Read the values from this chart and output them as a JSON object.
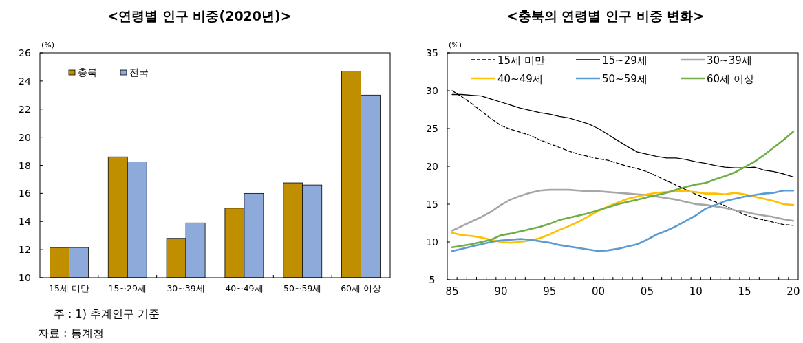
{
  "chart_data": [
    {
      "type": "bar",
      "title": "<연령별 인구 비중(2020년)>",
      "ylabel": "(%)",
      "categories": [
        "15세 미만",
        "15~29세",
        "30~39세",
        "40~49세",
        "50~59세",
        "60세 이상"
      ],
      "series": [
        {
          "name": "충북",
          "color": "#bf8f00",
          "values": [
            12.15,
            18.6,
            12.8,
            14.95,
            16.75,
            24.7
          ]
        },
        {
          "name": "전국",
          "color": "#8eaadb",
          "values": [
            12.15,
            18.25,
            13.9,
            16.0,
            16.6,
            23.0
          ]
        }
      ],
      "ylim": [
        10,
        26
      ],
      "yticks": [
        10,
        12,
        14,
        16,
        18,
        20,
        22,
        24,
        26
      ],
      "legend": "top left",
      "grid": false,
      "annotations": [
        "주 : 1) 추계인구 기준",
        "자료 : 통계청"
      ]
    },
    {
      "type": "line",
      "title": "<충북의 연령별 인구 비중 변화>",
      "ylabel": "(%)",
      "x": [
        1985,
        1986,
        1987,
        1988,
        1989,
        1990,
        1991,
        1992,
        1993,
        1994,
        1995,
        1996,
        1997,
        1998,
        1999,
        2000,
        2001,
        2002,
        2003,
        2004,
        2005,
        2006,
        2007,
        2008,
        2009,
        2010,
        2011,
        2012,
        2013,
        2014,
        2015,
        2016,
        2017,
        2018,
        2019,
        2020
      ],
      "series": [
        {
          "name": "15세 미만",
          "color": "#000000",
          "line_style": "dashed",
          "values": [
            30.0,
            29.2,
            28.3,
            27.3,
            26.3,
            25.4,
            24.9,
            24.5,
            24.1,
            23.5,
            23.0,
            22.5,
            22.0,
            21.6,
            21.3,
            21.0,
            20.8,
            20.4,
            20.0,
            19.7,
            19.3,
            18.7,
            18.1,
            17.5,
            16.9,
            16.3,
            15.8,
            15.3,
            14.8,
            14.2,
            13.6,
            13.2,
            12.9,
            12.6,
            12.3,
            12.2
          ]
        },
        {
          "name": "15~29세",
          "color": "#000000",
          "values": [
            29.5,
            29.5,
            29.4,
            29.3,
            28.9,
            28.5,
            28.1,
            27.7,
            27.4,
            27.1,
            26.9,
            26.6,
            26.4,
            26.0,
            25.6,
            25.0,
            24.2,
            23.4,
            22.6,
            21.9,
            21.6,
            21.3,
            21.1,
            21.1,
            20.9,
            20.6,
            20.4,
            20.1,
            19.9,
            19.8,
            19.8,
            19.9,
            19.5,
            19.3,
            19.0,
            18.6
          ]
        },
        {
          "name": "30~39세",
          "color": "#a6a6a6",
          "values": [
            11.5,
            12.1,
            12.7,
            13.3,
            14.0,
            14.9,
            15.6,
            16.1,
            16.5,
            16.8,
            16.9,
            16.9,
            16.9,
            16.8,
            16.7,
            16.7,
            16.6,
            16.5,
            16.4,
            16.3,
            16.2,
            16.0,
            15.8,
            15.6,
            15.3,
            15.0,
            14.9,
            14.7,
            14.5,
            14.2,
            14.0,
            13.7,
            13.5,
            13.3,
            13.0,
            12.8
          ]
        },
        {
          "name": "40~49세",
          "color": "#ffc000",
          "values": [
            11.2,
            10.9,
            10.8,
            10.6,
            10.3,
            10.0,
            9.9,
            10.0,
            10.2,
            10.5,
            11.0,
            11.6,
            12.1,
            12.7,
            13.4,
            14.1,
            14.7,
            15.2,
            15.7,
            16.0,
            16.3,
            16.5,
            16.6,
            16.7,
            16.7,
            16.6,
            16.4,
            16.4,
            16.3,
            16.5,
            16.3,
            16.0,
            15.7,
            15.4,
            15.0,
            14.9
          ]
        },
        {
          "name": "50~59세",
          "color": "#5b9bd5",
          "values": [
            8.8,
            9.1,
            9.4,
            9.7,
            10.0,
            10.2,
            10.3,
            10.4,
            10.3,
            10.1,
            9.9,
            9.6,
            9.4,
            9.2,
            9.0,
            8.8,
            8.9,
            9.1,
            9.4,
            9.7,
            10.3,
            11.0,
            11.5,
            12.1,
            12.8,
            13.5,
            14.4,
            14.9,
            15.4,
            15.7,
            16.0,
            16.2,
            16.4,
            16.5,
            16.8,
            16.8
          ]
        },
        {
          "name": "60세 이상",
          "color": "#70ad47",
          "values": [
            9.3,
            9.5,
            9.7,
            10.0,
            10.3,
            10.9,
            11.1,
            11.4,
            11.7,
            12.0,
            12.4,
            12.9,
            13.2,
            13.5,
            13.8,
            14.2,
            14.6,
            15.0,
            15.3,
            15.6,
            15.9,
            16.2,
            16.5,
            16.9,
            17.3,
            17.6,
            17.8,
            18.3,
            18.7,
            19.2,
            19.9,
            20.6,
            21.5,
            22.5,
            23.5,
            24.6
          ]
        }
      ],
      "xlim": [
        1984.5,
        2020.5
      ],
      "xticks": [
        {
          "value": 1985,
          "label": "85"
        },
        {
          "value": 1990,
          "label": "90"
        },
        {
          "value": 1995,
          "label": "95"
        },
        {
          "value": 2000,
          "label": "00"
        },
        {
          "value": 2005,
          "label": "05"
        },
        {
          "value": 2010,
          "label": "10"
        },
        {
          "value": 2015,
          "label": "15"
        },
        {
          "value": 2020,
          "label": "20"
        }
      ],
      "ylim": [
        5,
        35
      ],
      "yticks": [
        5,
        10,
        15,
        20,
        25,
        30,
        35
      ],
      "legend": "top",
      "grid": false
    }
  ]
}
